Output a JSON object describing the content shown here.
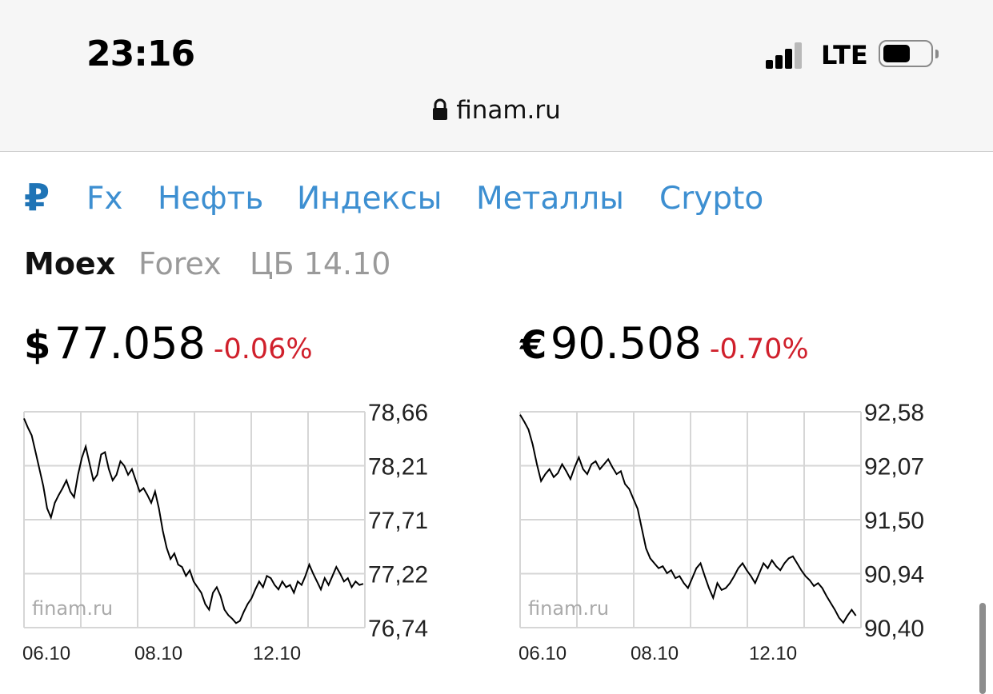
{
  "status_bar": {
    "time": "23:16",
    "network": "LTE",
    "signal_icon": "signal-bars-icon",
    "battery_icon": "battery-icon"
  },
  "address_bar": {
    "url": "finam.ru",
    "lock_icon": "lock-icon"
  },
  "nav": {
    "ruble_symbol": "₽",
    "tabs": [
      "Fx",
      "Нефть",
      "Индексы",
      "Металлы",
      "Crypto"
    ]
  },
  "subtabs": [
    "Moex",
    "Forex",
    "ЦБ 14.10"
  ],
  "active_subtab": "Moex",
  "quotes": [
    {
      "currency": "$",
      "value": "77.058",
      "change": "-0.06%"
    },
    {
      "currency": "€",
      "value": "90.508",
      "change": "-0.70%"
    }
  ],
  "colors": {
    "accent_blue": "#3d8fd1",
    "ruble_blue": "#1f74b6",
    "negative_red": "#d0202c",
    "grid": "#d6d6d6"
  },
  "chart_data": [
    {
      "type": "line",
      "title": "",
      "watermark": "finam.ru",
      "x_ticks": [
        "06.10",
        "08.10",
        "12.10"
      ],
      "y_ticks": [
        "78,66",
        "78,21",
        "77,71",
        "77,22",
        "76,74"
      ],
      "ylim": [
        76.74,
        78.66
      ],
      "grid": true,
      "series": [
        {
          "values": [
            78.6,
            78.52,
            78.45,
            78.3,
            78.15,
            78.0,
            77.8,
            77.72,
            77.85,
            77.92,
            77.98,
            78.05,
            77.95,
            77.9,
            78.1,
            78.25,
            78.35,
            78.2,
            78.05,
            78.1,
            78.28,
            78.3,
            78.15,
            78.05,
            78.1,
            78.22,
            78.18,
            78.1,
            78.15,
            78.05,
            77.95,
            77.98,
            77.92,
            77.85,
            77.95,
            77.8,
            77.6,
            77.45,
            77.35,
            77.4,
            77.3,
            77.28,
            77.2,
            77.25,
            77.15,
            77.1,
            77.05,
            76.95,
            76.9,
            77.05,
            77.1,
            77.02,
            76.9,
            76.85,
            76.82,
            76.78,
            76.8,
            76.88,
            76.95,
            77.0,
            77.08,
            77.15,
            77.1,
            77.2,
            77.18,
            77.12,
            77.08,
            77.15,
            77.1,
            77.12,
            77.05,
            77.15,
            77.12,
            77.2,
            77.3,
            77.22,
            77.15,
            77.08,
            77.18,
            77.12,
            77.2,
            77.28,
            77.22,
            77.15,
            77.18,
            77.1,
            77.15,
            77.12,
            77.13
          ]
        }
      ]
    },
    {
      "type": "line",
      "title": "",
      "watermark": "finam.ru",
      "x_ticks": [
        "06.10",
        "08.10",
        "12.10"
      ],
      "y_ticks": [
        "92,58",
        "92,07",
        "91,50",
        "90,94",
        "90,40"
      ],
      "ylim": [
        90.4,
        92.58
      ],
      "grid": true,
      "series": [
        {
          "values": [
            92.55,
            92.48,
            92.4,
            92.25,
            92.05,
            91.88,
            91.95,
            92.0,
            91.92,
            91.96,
            92.05,
            91.98,
            91.9,
            92.02,
            92.12,
            92.0,
            91.95,
            92.05,
            92.08,
            92.0,
            92.05,
            92.1,
            92.02,
            91.95,
            91.98,
            91.85,
            91.8,
            91.7,
            91.6,
            91.4,
            91.2,
            91.1,
            91.05,
            91.0,
            91.02,
            90.95,
            90.98,
            90.9,
            90.92,
            90.85,
            90.8,
            90.9,
            91.0,
            91.05,
            90.92,
            90.8,
            90.7,
            90.85,
            90.78,
            90.8,
            90.85,
            90.92,
            91.0,
            91.05,
            90.98,
            90.92,
            90.85,
            90.95,
            91.05,
            91.0,
            91.08,
            91.02,
            90.98,
            91.05,
            91.1,
            91.12,
            91.05,
            90.98,
            90.92,
            90.88,
            90.82,
            90.85,
            90.8,
            90.72,
            90.65,
            90.58,
            90.5,
            90.45,
            90.52,
            90.58,
            90.52
          ]
        }
      ]
    }
  ]
}
